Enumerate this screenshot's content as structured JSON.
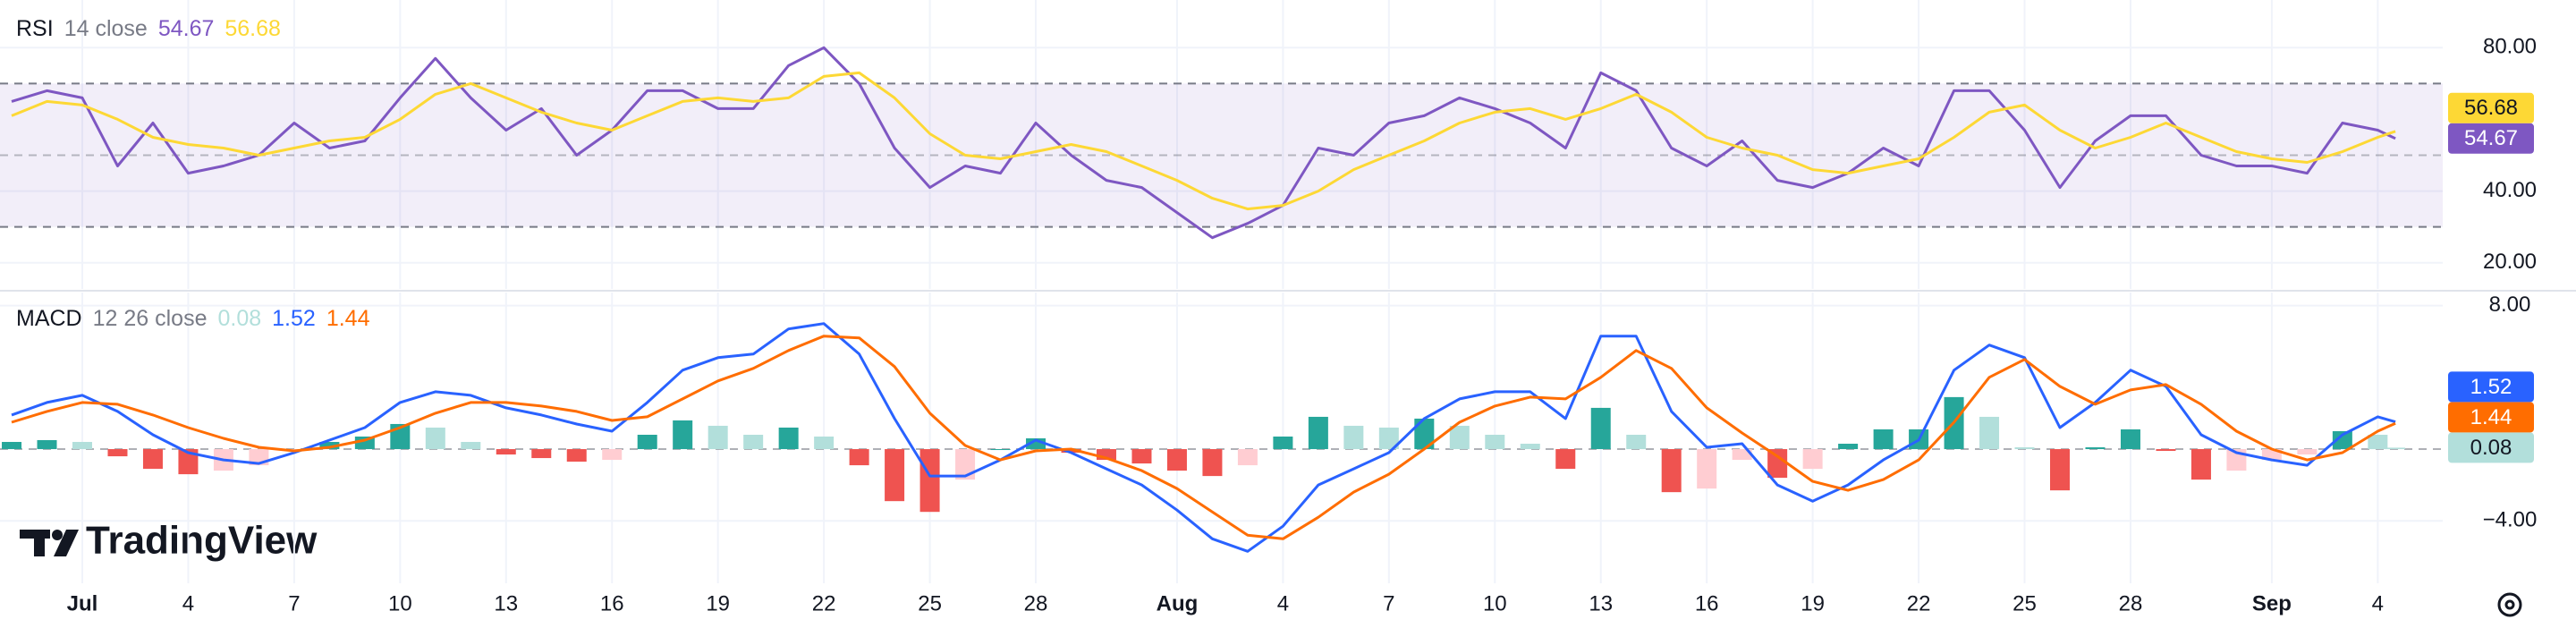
{
  "chart_data": [
    {
      "type": "line",
      "title": "RSI",
      "subtitle": "14 close",
      "x": [
        -1,
        0,
        1,
        2,
        3,
        4,
        5,
        6,
        7,
        8,
        9,
        10,
        11,
        12,
        13,
        14,
        15,
        16,
        17,
        18,
        19,
        20,
        21,
        22,
        23,
        24,
        25,
        26,
        27,
        28,
        29,
        30,
        31,
        32,
        33,
        34,
        35,
        36,
        37,
        38,
        39,
        40,
        41,
        42,
        43,
        44,
        45,
        46,
        47,
        48,
        49,
        50,
        51,
        52,
        53,
        54,
        55,
        56,
        57,
        58,
        59,
        60,
        61,
        62,
        63,
        64,
        65,
        66,
        66.5
      ],
      "xlim": [
        -1.33,
        67.84
      ],
      "ylim": [
        12.7,
        93.3
      ],
      "yticks": [
        {
          "value": 80,
          "label": "80.00"
        },
        {
          "value": 40,
          "label": "40.00"
        },
        {
          "value": 20,
          "label": "20.00"
        }
      ],
      "bands": [
        70,
        50,
        30
      ],
      "band_color": "#7e57c2",
      "grid": true,
      "series": [
        {
          "color": "#7e57c2",
          "values": [
            65,
            68,
            66,
            47,
            59,
            45,
            47,
            50,
            59,
            52,
            54,
            66,
            77,
            66,
            57,
            63,
            50,
            57,
            68,
            68,
            63,
            63,
            75,
            80,
            70,
            52,
            41,
            47,
            45,
            59,
            50,
            43,
            41,
            34,
            27,
            31,
            36,
            52,
            50,
            59,
            61,
            66,
            63,
            59,
            52,
            73,
            68,
            52,
            47,
            54,
            43,
            41,
            45,
            52,
            47,
            68,
            68,
            57,
            41,
            54,
            61,
            61,
            50,
            47,
            47,
            45,
            59,
            57,
            54.67
          ]
        },
        {
          "color": "#fdd835",
          "values": [
            61,
            65,
            64,
            60,
            55,
            53,
            52,
            50,
            52,
            54,
            55,
            60,
            67,
            70,
            66,
            62,
            59,
            57,
            61,
            65,
            66,
            65,
            66,
            72,
            73,
            66,
            56,
            50,
            49,
            51,
            53,
            51,
            47,
            43,
            38,
            35,
            36,
            40,
            46,
            50,
            54,
            59,
            62,
            63,
            60,
            63,
            67,
            62,
            55,
            52,
            50,
            46,
            45,
            47,
            49,
            55,
            62,
            64,
            57,
            52,
            55,
            59,
            55,
            51,
            49,
            48,
            51,
            55,
            56.68
          ]
        }
      ]
    },
    {
      "type": "line",
      "title": "MACD",
      "subtitle": "12 26 close",
      "x": [
        -1,
        0,
        1,
        2,
        3,
        4,
        5,
        6,
        7,
        8,
        9,
        10,
        11,
        12,
        13,
        14,
        15,
        16,
        17,
        18,
        19,
        20,
        21,
        22,
        23,
        24,
        25,
        26,
        27,
        28,
        29,
        30,
        31,
        32,
        33,
        34,
        35,
        36,
        37,
        38,
        39,
        40,
        41,
        42,
        43,
        44,
        45,
        46,
        47,
        48,
        49,
        50,
        51,
        52,
        53,
        54,
        55,
        56,
        57,
        58,
        59,
        60,
        61,
        62,
        63,
        64,
        65,
        66,
        66.5
      ],
      "xlim": [
        -1.33,
        67.84
      ],
      "ylim": [
        -7.48,
        8.73
      ],
      "yticks": [
        {
          "value": 8,
          "label": "8.00"
        },
        {
          "value": -4,
          "label": "−4.00"
        }
      ],
      "baseline": 0,
      "grid": true,
      "xticks": [
        {
          "value": 1,
          "label": "Jul"
        },
        4,
        7,
        10,
        13,
        16,
        19,
        22,
        25,
        28,
        {
          "value": 32,
          "label": "Aug"
        },
        {
          "value": 35,
          "label": "4"
        },
        {
          "value": 38,
          "label": "7"
        },
        {
          "value": 41,
          "label": "10"
        },
        {
          "value": 44,
          "label": "13"
        },
        {
          "value": 47,
          "label": "16"
        },
        {
          "value": 50,
          "label": "19"
        },
        {
          "value": 53,
          "label": "22"
        },
        {
          "value": 56,
          "label": "25"
        },
        {
          "value": 59,
          "label": "28"
        },
        {
          "value": 63,
          "label": "Sep"
        },
        {
          "value": 66,
          "label": "4"
        }
      ],
      "series": [
        {
          "type": "bar",
          "colors": [
            "#26a69a",
            "#b2dfdb",
            "#ef5350",
            "#ffcdd2"
          ],
          "values": [
            0.4,
            0.5,
            0.4,
            -0.4,
            -1.1,
            -1.4,
            -1.2,
            -0.9,
            -0.1,
            0.4,
            0.7,
            1.4,
            1.2,
            0.4,
            -0.3,
            -0.5,
            -0.7,
            -0.6,
            0.8,
            1.6,
            1.3,
            0.8,
            1.2,
            0.7,
            -0.9,
            -2.9,
            -3.5,
            -1.7,
            0,
            0.6,
            -0.2,
            -0.6,
            -0.8,
            -1.2,
            -1.5,
            -0.9,
            0.7,
            1.8,
            1.3,
            1.2,
            1.7,
            1.3,
            0.8,
            0.3,
            -1.1,
            2.3,
            0.8,
            -2.4,
            -2.2,
            -0.6,
            -1.6,
            -1.1,
            0.3,
            1.1,
            1.1,
            2.9,
            1.8,
            0.1,
            -2.3,
            0.1,
            1.1,
            -0.1,
            -1.7,
            -1.2,
            -0.6,
            -0.3,
            1,
            0.8,
            0.08
          ]
        },
        {
          "color": "#2962ff",
          "values": [
            1.9,
            2.6,
            3,
            2.1,
            0.8,
            -0.2,
            -0.6,
            -0.8,
            -0.2,
            0.5,
            1.2,
            2.6,
            3.2,
            3,
            2.3,
            1.9,
            1.4,
            1,
            2.6,
            4.4,
            5.1,
            5.3,
            6.7,
            7,
            5.3,
            1.7,
            -1.5,
            -1.5,
            -0.6,
            0.5,
            -0.2,
            -1.1,
            -2,
            -3.4,
            -5,
            -5.7,
            -4.3,
            -2,
            -1.1,
            -0.2,
            1.7,
            2.8,
            3.2,
            3.2,
            1.7,
            6.3,
            6.3,
            2.1,
            0.1,
            0.3,
            -2,
            -2.9,
            -2,
            -0.6,
            0.5,
            4.4,
            5.8,
            5.1,
            1.2,
            2.6,
            4.4,
            3.5,
            0.8,
            -0.2,
            -0.6,
            -0.9,
            0.8,
            1.8,
            1.52
          ]
        },
        {
          "color": "#ff6d00",
          "values": [
            1.5,
            2.1,
            2.6,
            2.5,
            1.9,
            1.2,
            0.6,
            0.1,
            -0.1,
            0.1,
            0.5,
            1.2,
            2,
            2.6,
            2.6,
            2.4,
            2.1,
            1.6,
            1.8,
            2.8,
            3.8,
            4.5,
            5.5,
            6.3,
            6.2,
            4.6,
            2,
            0.2,
            -0.6,
            -0.1,
            0,
            -0.5,
            -1.2,
            -2.2,
            -3.5,
            -4.8,
            -5,
            -3.8,
            -2.4,
            -1.4,
            0,
            1.5,
            2.4,
            2.9,
            2.8,
            4,
            5.5,
            4.5,
            2.3,
            0.9,
            -0.4,
            -1.8,
            -2.3,
            -1.7,
            -0.6,
            1.5,
            4,
            5,
            3.5,
            2.5,
            3.3,
            3.6,
            2.5,
            1,
            0,
            -0.6,
            -0.2,
            1,
            1.44
          ]
        }
      ]
    }
  ],
  "watermark": "TradingView"
}
